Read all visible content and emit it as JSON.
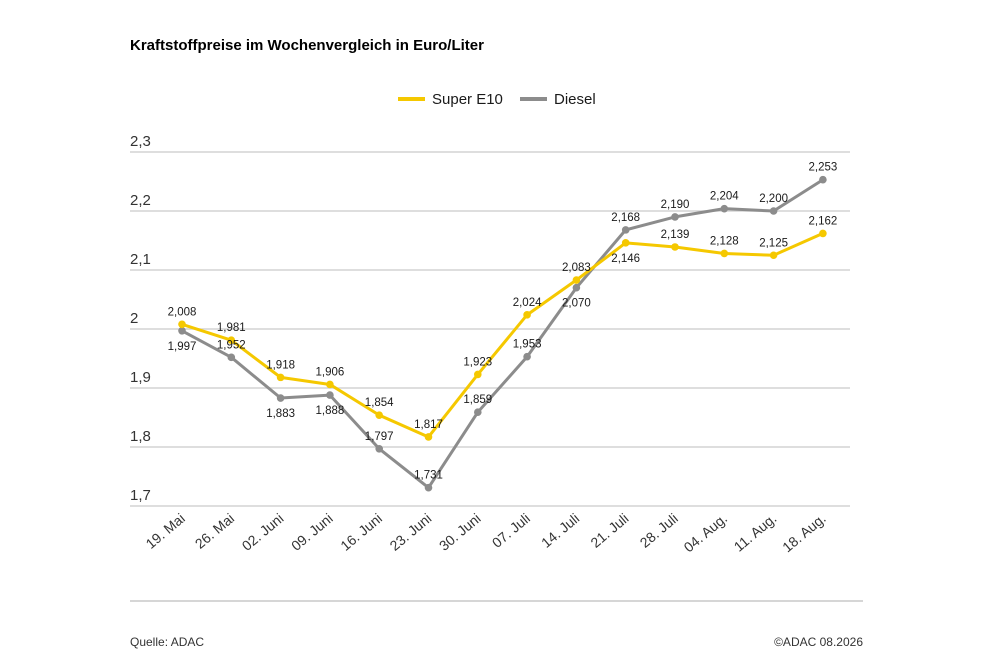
{
  "chart_data": {
    "type": "line",
    "title": "Kraftstoffpreise im Wochenvergleich in Euro/Liter",
    "categories": [
      "19. Mai",
      "26. Mai",
      "02. Juni",
      "09. Juni",
      "16. Juni",
      "23. Juni",
      "30. Juni",
      "07. Juli",
      "14. Juli",
      "21. Juli",
      "28. Juli",
      "04. Aug.",
      "11. Aug.",
      "18. Aug."
    ],
    "series": [
      {
        "name": "Super E10",
        "color": "#f5c800",
        "values": [
          2.008,
          1.981,
          1.918,
          1.906,
          1.854,
          1.817,
          1.923,
          2.024,
          2.083,
          2.146,
          2.139,
          2.128,
          2.125,
          2.162
        ],
        "labels": [
          "2,008",
          "1,981",
          "1,918",
          "1,906",
          "1,854",
          "1,817",
          "1,923",
          "2,024",
          "2,083",
          "2,146",
          "2,139",
          "2,128",
          "2,125",
          "2,162"
        ]
      },
      {
        "name": "Diesel",
        "color": "#8c8c8c",
        "values": [
          1.997,
          1.952,
          1.883,
          1.888,
          1.797,
          1.731,
          1.859,
          1.953,
          2.07,
          2.168,
          2.19,
          2.204,
          2.2,
          2.253
        ],
        "labels": [
          "1,997",
          "1,952",
          "1,883",
          "1,888",
          "1,797",
          "1,731",
          "1,859",
          "1,953",
          "2,070",
          "2,168",
          "2,190",
          "2,204",
          "2,200",
          "2,253"
        ]
      }
    ],
    "yticks": [
      1.7,
      1.8,
      1.9,
      2.0,
      2.1,
      2.2,
      2.3
    ],
    "ytick_labels": [
      "1,7",
      "1,8",
      "1,9",
      "2",
      "2,1",
      "2,2",
      "2,3"
    ],
    "ylim": [
      1.7,
      2.3
    ],
    "grid": true,
    "legend": "top-center"
  },
  "footer": {
    "source": "Quelle: ADAC",
    "copyright": "©ADAC 08.2026"
  }
}
